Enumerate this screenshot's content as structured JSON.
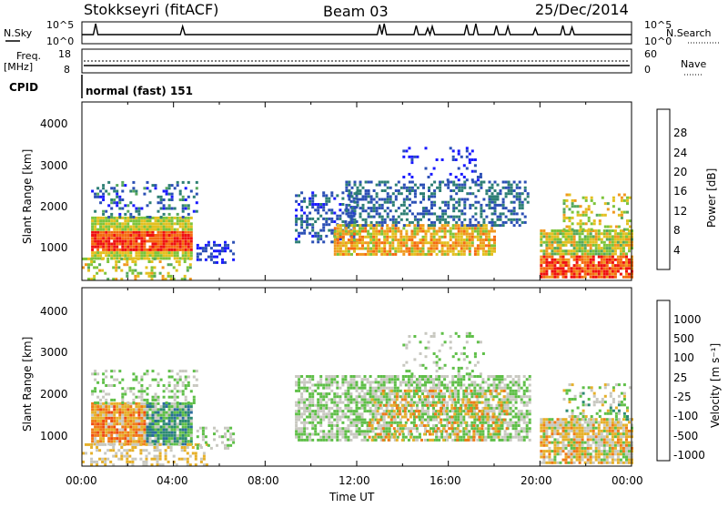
{
  "header": {
    "radar": "Stokkseyri (fitACF)",
    "beam": "Beam 03",
    "date": "25/Dec/2014"
  },
  "top_panels": {
    "nsky_label": "N.Sky",
    "nsky_ticks": [
      "10^5",
      "10^0"
    ],
    "nsearch_label": "N.Search",
    "nsearch_ticks": [
      "10^5",
      "10^0"
    ],
    "freq_label": "Freq.",
    "freq_unit": "[MHz]",
    "freq_ticks": [
      "18",
      "8"
    ],
    "nave_label": "Nave",
    "nave_ticks": [
      "60",
      "0"
    ],
    "cpid_label": "CPID",
    "cpid_value": "normal (fast) 151"
  },
  "chart_data": [
    {
      "type": "heatmap",
      "name": "power-panel",
      "ylabel": "Slant Range [km]",
      "yticks": [
        "4000",
        "3000",
        "2000",
        "1000"
      ],
      "ylim": [
        180,
        4500
      ],
      "colorbar_label": "Power [dB]",
      "colorbar_ticks": [
        "28",
        "24",
        "20",
        "16",
        "12",
        "8",
        "4"
      ],
      "colors": [
        "#1a1aff",
        "#2b4fb5",
        "#2d7f74",
        "#56a85c",
        "#7dc43a",
        "#e3c020",
        "#f0981f",
        "#f56a10",
        "#ef1010"
      ]
    },
    {
      "type": "heatmap",
      "name": "velocity-panel",
      "ylabel": "Slant Range [km]",
      "yticks": [
        "4000",
        "3000",
        "2000",
        "1000"
      ],
      "ylim": [
        180,
        4500
      ],
      "xlabel": "Time UT",
      "xticks": [
        "00:00",
        "04:00",
        "08:00",
        "12:00",
        "16:00",
        "20:00",
        "00:00"
      ],
      "colorbar_label": "Velocity [m s⁻¹]",
      "colorbar_ticks": [
        "1000",
        "500",
        "100",
        "25",
        "-25",
        "-100",
        "-500",
        "-1000"
      ],
      "colors": [
        "#1f3fb0",
        "#2a6a9f",
        "#2d8a72",
        "#5fbf48",
        "#c8c8c0",
        "#e6b02a",
        "#f07a18",
        "#ef4a12",
        "#e81010"
      ]
    }
  ]
}
